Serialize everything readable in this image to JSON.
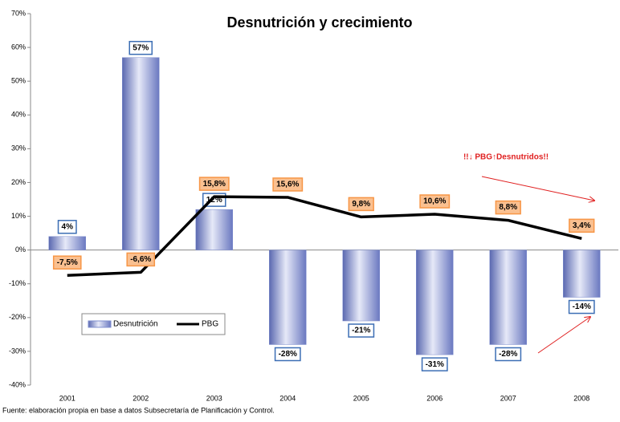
{
  "chart_data": {
    "type": "bar-line",
    "title": "Desnutrición y crecimiento",
    "categories": [
      "2001",
      "2002",
      "2003",
      "2004",
      "2005",
      "2006",
      "2007",
      "2008"
    ],
    "series": [
      {
        "name": "Desnutrición",
        "type": "bar",
        "color": "#7f8fcf",
        "values": [
          4,
          57,
          12,
          -28,
          -21,
          -31,
          -28,
          -14
        ],
        "value_labels": [
          "4%",
          "57%",
          "12%",
          "-28%",
          "-21%",
          "-31%",
          "-28%",
          "-14%"
        ]
      },
      {
        "name": "PBG",
        "type": "line",
        "color": "#000000",
        "values": [
          -7.5,
          -6.6,
          15.8,
          15.6,
          9.8,
          10.6,
          8.8,
          3.4
        ],
        "value_labels": [
          "-7,5%",
          "-6,6%",
          "15,8%",
          "15,6%",
          "9,8%",
          "10,6%",
          "8,8%",
          "3,4%"
        ]
      }
    ],
    "ylim": [
      -40,
      70
    ],
    "yticks": [
      {
        "value": -40,
        "label": "-40%"
      },
      {
        "value": -30,
        "label": "-30%"
      },
      {
        "value": -20,
        "label": "-20%"
      },
      {
        "value": -10,
        "label": "-10%"
      },
      {
        "value": 0,
        "label": "0%"
      },
      {
        "value": 10,
        "label": "10%"
      },
      {
        "value": 20,
        "label": "20%"
      },
      {
        "value": 30,
        "label": "30%"
      },
      {
        "value": 40,
        "label": "40%"
      },
      {
        "value": 50,
        "label": "50%"
      },
      {
        "value": 60,
        "label": "60%"
      },
      {
        "value": 70,
        "label": "70%"
      }
    ],
    "annotation": "!!↓ PBG↑Desnutridos!!",
    "source": "Fuente: elaboración propia en base a datos Subsecretaría de Planificación y Control."
  }
}
